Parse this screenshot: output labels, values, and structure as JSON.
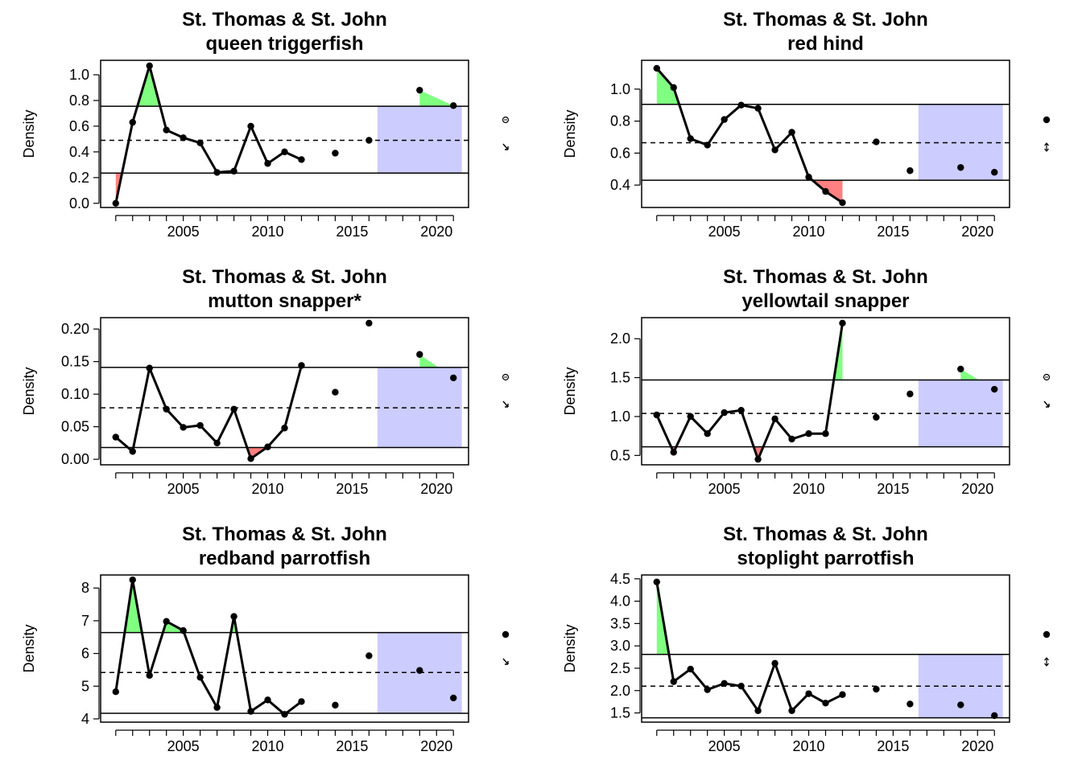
{
  "colors": {
    "above": "#80FF80",
    "below": "#FF8080",
    "recent_box": "#CCCCFF",
    "line": "#000000"
  },
  "chart_data": [
    {
      "type": "line",
      "title": "St. Thomas & St. John",
      "subtitle": "queen triggerfish",
      "ylabel": "Density",
      "xlabel": "",
      "ylim": [
        -0.02,
        1.1
      ],
      "xlim": [
        2000.2,
        2021.8
      ],
      "xticks": [
        2005,
        2010,
        2015,
        2020
      ],
      "yticks": [
        "0.0",
        "0.2",
        "0.4",
        "0.6",
        "0.8",
        "1.0"
      ],
      "mean": 0.49,
      "upper": 0.755,
      "lower": 0.235,
      "line_series": {
        "x": [
          2001,
          2002,
          2003,
          2004,
          2005,
          2006,
          2007,
          2008,
          2009,
          2010,
          2011,
          2012
        ],
        "y": [
          0.0,
          0.63,
          1.07,
          0.57,
          0.51,
          0.47,
          0.24,
          0.25,
          0.6,
          0.31,
          0.4,
          0.34
        ]
      },
      "points": {
        "x": [
          2014,
          2016,
          2019,
          2021
        ],
        "y": [
          0.39,
          0.49,
          0.88,
          0.76
        ]
      },
      "recent_window": [
        2016.5,
        2021.5
      ],
      "trend_mean": "open-circle",
      "trend_slope": "arrow-down"
    },
    {
      "type": "line",
      "title": "St. Thomas & St. John",
      "subtitle": "red hind",
      "ylabel": "Density",
      "xlabel": "",
      "ylim": [
        0.27,
        1.17
      ],
      "xlim": [
        2000.2,
        2021.8
      ],
      "xticks": [
        2005,
        2010,
        2015,
        2020
      ],
      "yticks": [
        "0.4",
        "0.6",
        "0.8",
        "1.0"
      ],
      "mean": 0.665,
      "upper": 0.905,
      "lower": 0.43,
      "line_series": {
        "x": [
          2001,
          2002,
          2003,
          2004,
          2005,
          2006,
          2007,
          2008,
          2009,
          2010,
          2011,
          2012
        ],
        "y": [
          1.13,
          1.01,
          0.69,
          0.65,
          0.81,
          0.9,
          0.88,
          0.62,
          0.73,
          0.45,
          0.36,
          0.29
        ]
      },
      "points": {
        "x": [
          2014,
          2016,
          2019,
          2021
        ],
        "y": [
          0.67,
          0.49,
          0.51,
          0.48
        ]
      },
      "recent_window": [
        2016.5,
        2021.5
      ],
      "trend_mean": "filled-circle",
      "trend_slope": "double-arrow"
    },
    {
      "type": "line",
      "title": "St. Thomas & St. John",
      "subtitle": "mutton snapper*",
      "ylabel": "Density",
      "xlabel": "",
      "ylim": [
        -0.006,
        0.215
      ],
      "xlim": [
        2000.2,
        2021.8
      ],
      "xticks": [
        2005,
        2010,
        2015,
        2020
      ],
      "yticks": [
        "0.00",
        "0.05",
        "0.10",
        "0.15",
        "0.20"
      ],
      "mean": 0.079,
      "upper": 0.141,
      "lower": 0.018,
      "line_series": {
        "x": [
          2001,
          2002,
          2003,
          2004,
          2005,
          2006,
          2007,
          2008,
          2009,
          2010,
          2011,
          2012
        ],
        "y": [
          0.034,
          0.012,
          0.14,
          0.077,
          0.049,
          0.052,
          0.025,
          0.077,
          0.001,
          0.019,
          0.048,
          0.144
        ]
      },
      "points": {
        "x": [
          2014,
          2016,
          2019,
          2021
        ],
        "y": [
          0.103,
          0.209,
          0.161,
          0.125
        ]
      },
      "recent_window": [
        2016.5,
        2021.5
      ],
      "trend_mean": "open-circle",
      "trend_slope": "arrow-down"
    },
    {
      "type": "line",
      "title": "St. Thomas & St. John",
      "subtitle": "yellowtail snapper",
      "ylabel": "Density",
      "xlabel": "",
      "ylim": [
        0.4,
        2.25
      ],
      "xlim": [
        2000.2,
        2021.8
      ],
      "xticks": [
        2005,
        2010,
        2015,
        2020
      ],
      "yticks": [
        "0.5",
        "1.0",
        "1.5",
        "2.0"
      ],
      "mean": 1.04,
      "upper": 1.47,
      "lower": 0.61,
      "line_series": {
        "x": [
          2001,
          2002,
          2003,
          2004,
          2005,
          2006,
          2007,
          2008,
          2009,
          2010,
          2011,
          2012
        ],
        "y": [
          1.02,
          0.54,
          1.0,
          0.78,
          1.05,
          1.08,
          0.45,
          0.97,
          0.71,
          0.78,
          0.78,
          2.2
        ]
      },
      "points": {
        "x": [
          2014,
          2016,
          2019,
          2021
        ],
        "y": [
          0.99,
          1.29,
          1.61,
          1.35
        ]
      },
      "recent_window": [
        2016.5,
        2021.5
      ],
      "trend_mean": "open-circle",
      "trend_slope": "arrow-down"
    },
    {
      "type": "line",
      "title": "St. Thomas & St. John",
      "subtitle": "redband parrotfish",
      "ylabel": "Density",
      "xlabel": "",
      "ylim": [
        3.95,
        8.35
      ],
      "xlim": [
        2000.2,
        2021.8
      ],
      "xticks": [
        2005,
        2010,
        2015,
        2020
      ],
      "yticks": [
        "4",
        "5",
        "6",
        "7",
        "8"
      ],
      "mean": 5.42,
      "upper": 6.64,
      "lower": 4.17,
      "line_series": {
        "x": [
          2001,
          2002,
          2003,
          2004,
          2005,
          2006,
          2007,
          2008,
          2009,
          2010,
          2011,
          2012
        ],
        "y": [
          4.83,
          8.25,
          5.33,
          6.98,
          6.7,
          5.27,
          4.35,
          7.13,
          4.23,
          4.58,
          4.14,
          4.53
        ]
      },
      "points": {
        "x": [
          2014,
          2016,
          2019,
          2021
        ],
        "y": [
          4.42,
          5.93,
          5.48,
          4.64
        ]
      },
      "recent_window": [
        2016.5,
        2021.5
      ],
      "trend_mean": "filled-circle",
      "trend_slope": "arrow-down"
    },
    {
      "type": "line",
      "title": "St. Thomas & St. John",
      "subtitle": "stoplight parrotfish",
      "ylabel": "Density",
      "xlabel": "",
      "ylim": [
        1.33,
        4.55
      ],
      "xlim": [
        2000.2,
        2021.8
      ],
      "xticks": [
        2005,
        2010,
        2015,
        2020
      ],
      "yticks": [
        "1.5",
        "2.0",
        "2.5",
        "3.0",
        "3.5",
        "4.0",
        "4.5"
      ],
      "mean": 2.1,
      "upper": 2.81,
      "lower": 1.39,
      "line_series": {
        "x": [
          2001,
          2002,
          2003,
          2004,
          2005,
          2006,
          2007,
          2008,
          2009,
          2010,
          2011,
          2012
        ],
        "y": [
          4.43,
          2.2,
          2.48,
          2.02,
          2.16,
          2.1,
          1.55,
          2.61,
          1.55,
          1.93,
          1.72,
          1.91
        ]
      },
      "points": {
        "x": [
          2014,
          2016,
          2019,
          2021
        ],
        "y": [
          2.03,
          1.7,
          1.68,
          1.44
        ]
      },
      "recent_window": [
        2016.5,
        2021.5
      ],
      "trend_mean": "filled-circle",
      "trend_slope": "double-arrow"
    }
  ]
}
